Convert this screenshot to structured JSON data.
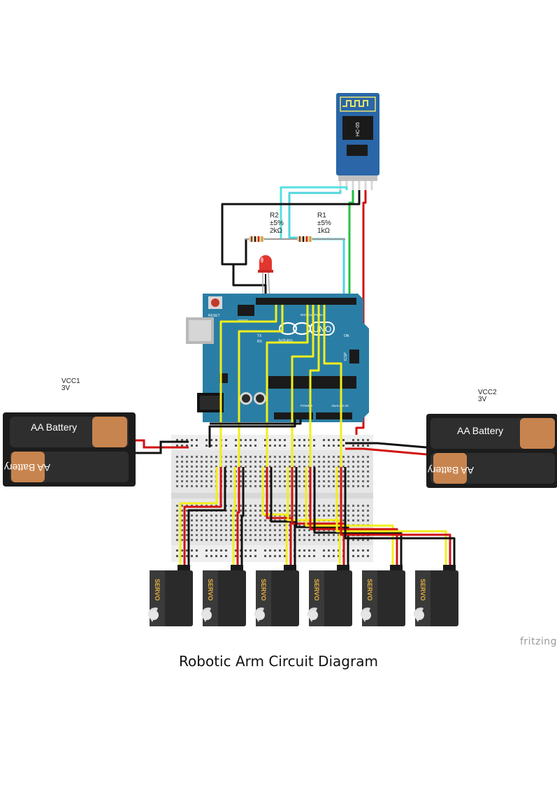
{
  "caption": "Robotic Arm Circuit Diagram",
  "watermark": "fritzing",
  "colors": {
    "arduino_board": "#2a7ea5",
    "bluetooth_board": "#2a66a8",
    "breadboard": "#e6e6e6",
    "battery_holder": "#1c1c1c",
    "battery_cell": "#2e2e2e",
    "battery_cap": "#c8844e",
    "servo": "#2a2a2a",
    "servo_label": "#e8b040",
    "wire_yellow": "#f2ef1a",
    "wire_red": "#d11212",
    "wire_black": "#111111",
    "wire_cyan": "#4fd6dc",
    "wire_green": "#22c23c",
    "led": "#e3362f"
  },
  "components": {
    "bluetooth": {
      "name": "HC-05",
      "icon": "bluetooth-module-icon"
    },
    "r2": {
      "ref": "R2",
      "tolerance": "±5%",
      "value": "2kΩ"
    },
    "r1": {
      "ref": "R1",
      "tolerance": "±5%",
      "value": "1kΩ"
    },
    "battery_left": {
      "label": "VCC1",
      "voltage": "3V",
      "cells": [
        "AA Battery",
        "AA Battery"
      ]
    },
    "battery_right": {
      "label": "VCC2",
      "voltage": "3V",
      "cells": [
        "AA Battery",
        "AA Battery"
      ]
    },
    "arduino": {
      "brand": "Arduino",
      "model": "UNO",
      "reset": "RESET",
      "icsp2": "ICSP2",
      "icsp": "ICSP",
      "tx": "TX",
      "rx": "RX",
      "on": "ON",
      "digital": "DIGITAL (PWM~)",
      "power": "POWER",
      "analog": "ANALOG IN"
    },
    "servos": [
      "SERVO",
      "SERVO",
      "SERVO",
      "SERVO",
      "SERVO",
      "SERVO"
    ]
  }
}
